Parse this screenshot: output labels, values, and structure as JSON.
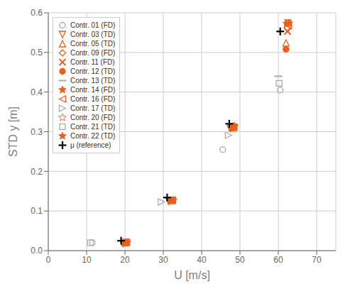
{
  "chart_data": {
    "type": "scatter",
    "xlabel": "U [m/s]",
    "ylabel": "STD y [m]",
    "xlim": [
      0,
      75
    ],
    "ylim": [
      0,
      0.6
    ],
    "xticks": [
      0,
      10,
      20,
      30,
      40,
      50,
      60,
      70
    ],
    "yticks": [
      {
        "value": 0.0,
        "label": "0.0"
      },
      0.1,
      0.2,
      0.3,
      0.4,
      0.5,
      0.6
    ],
    "grid": true,
    "legend": "upper left",
    "series": [
      {
        "name": "Contr. 01 (FD)",
        "color": "#aaaaaa",
        "marker": "circle-open",
        "x": [
          11.5,
          45.5,
          60.5
        ],
        "y": [
          0.02,
          0.255,
          0.405
        ]
      },
      {
        "name": "Contr. 03 (TD)",
        "color": "#E8601C",
        "marker": "triangle-down-open",
        "x": [
          19.5,
          31.5,
          47.5,
          62.5
        ],
        "y": [
          0.018,
          0.124,
          0.308,
          0.574
        ]
      },
      {
        "name": "Contr. 05 (TD)",
        "color": "#E8601C",
        "marker": "triangle-up-open",
        "x": [
          20.0,
          32.0,
          48.0,
          62.0
        ],
        "y": [
          0.02,
          0.126,
          0.31,
          0.524
        ]
      },
      {
        "name": "Contr. 09 (FD)",
        "color": "#E8601C",
        "marker": "diamond-open",
        "x": [
          20.2,
          32.2,
          48.2,
          62.3
        ],
        "y": [
          0.021,
          0.127,
          0.313,
          0.562
        ]
      },
      {
        "name": "Contr. 11 (FD)",
        "color": "#E8601C",
        "marker": "x",
        "x": [
          20.3,
          32.3,
          48.3,
          62.4
        ],
        "y": [
          0.022,
          0.128,
          0.312,
          0.553
        ]
      },
      {
        "name": "Contr. 12 (TD)",
        "color": "#E8601C",
        "marker": "circle",
        "x": [
          19.8,
          31.8,
          47.8,
          62.0
        ],
        "y": [
          0.021,
          0.127,
          0.31,
          0.508
        ]
      },
      {
        "name": "Contr. 13 (TD)",
        "color": "#aaaaaa",
        "marker": "hline",
        "x": [
          60.0
        ],
        "y": [
          0.44
        ]
      },
      {
        "name": "Contr. 14 (FD)",
        "color": "#E8601C",
        "marker": "star",
        "x": [
          20.1,
          32.1,
          48.1,
          62.1
        ],
        "y": [
          0.021,
          0.127,
          0.313,
          0.573
        ]
      },
      {
        "name": "Contr. 16 (FD)",
        "color": "#E8601C",
        "marker": "triangle-left-open",
        "x": [
          20.4,
          32.4,
          48.4,
          62.6
        ],
        "y": [
          0.021,
          0.127,
          0.311,
          0.568
        ]
      },
      {
        "name": "Contr. 17 (TD)",
        "color": "#aaaaaa",
        "marker": "triangle-right-open",
        "x": [
          29.5,
          47.0
        ],
        "y": [
          0.123,
          0.291
        ]
      },
      {
        "name": "Contr. 20 (FD)",
        "color": "#E8601C",
        "marker": "star-open",
        "x": [
          20.5,
          32.5,
          48.5,
          62.7
        ],
        "y": [
          0.021,
          0.127,
          0.313,
          0.573
        ]
      },
      {
        "name": "Contr. 21 (TD)",
        "color": "#aaaaaa",
        "marker": "square-open",
        "x": [
          11.0,
          60.2
        ],
        "y": [
          0.02,
          0.422
        ]
      },
      {
        "name": "Contr. 22 (TD)",
        "color": "#E8601C",
        "marker": "star",
        "x": [
          20.6,
          32.6,
          48.6,
          62.8
        ],
        "y": [
          0.021,
          0.127,
          0.314,
          0.574
        ]
      },
      {
        "name": "μ (reference)",
        "color": "#000000",
        "marker": "plus",
        "x": [
          19.0,
          31.0,
          47.2,
          60.5
        ],
        "y": [
          0.025,
          0.134,
          0.32,
          0.553
        ]
      }
    ]
  }
}
